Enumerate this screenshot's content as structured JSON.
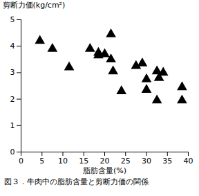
{
  "chart_data": {
    "type": "scatter",
    "caption": "図３．牛肉中の脂肪含量と剪断力価の関係",
    "xlabel": "脂肪含量(%)",
    "ylabel": "剪断力価(kg/cm²)",
    "x": [
      4.5,
      7.5,
      11.5,
      16.5,
      18.5,
      18.5,
      20,
      21.5,
      21.5,
      22,
      24,
      27.5,
      29,
      30,
      30,
      32.5,
      33,
      32.5,
      34,
      38.5,
      38.5
    ],
    "values": [
      4.2,
      3.9,
      3.2,
      3.9,
      3.75,
      3.65,
      3.7,
      4.45,
      3.5,
      3.05,
      2.3,
      3.25,
      3.35,
      2.75,
      2.35,
      3.05,
      2.8,
      1.95,
      3.0,
      2.45,
      1.95
    ],
    "color": "#000000",
    "marker": "triangle",
    "xlim": [
      0,
      40
    ],
    "xticks": [
      0,
      5,
      10,
      15,
      20,
      25,
      30,
      35,
      40
    ],
    "ylim": [
      0,
      5
    ],
    "yticks": [
      0,
      1,
      2,
      3,
      4,
      5
    ],
    "grid": false
  }
}
